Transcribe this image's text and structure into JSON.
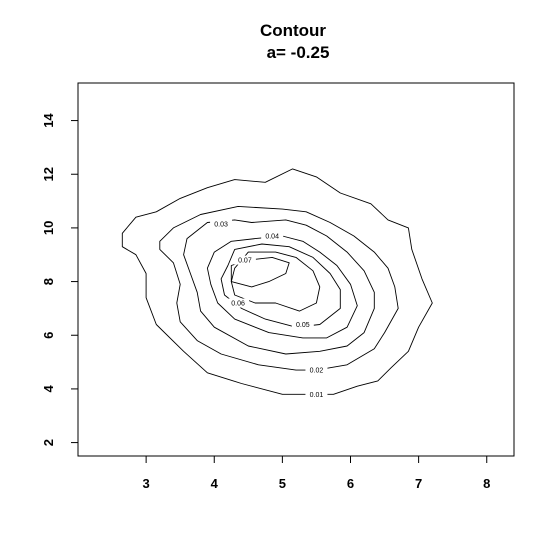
{
  "chart_data": {
    "type": "contour",
    "title": "Contour",
    "subtitle": "a= -0.25",
    "xlabel": "",
    "ylabel": "",
    "xlim": [
      2,
      8.4
    ],
    "ylim": [
      1.5,
      15.4
    ],
    "x_ticks": [
      3,
      4,
      5,
      6,
      7,
      8
    ],
    "y_ticks": [
      2,
      4,
      6,
      8,
      10,
      12,
      14
    ],
    "grid": false,
    "levels": [
      {
        "label": "0.01",
        "label_at": [
          5.5,
          3.8
        ],
        "points": [
          [
            2.65,
            9.8
          ],
          [
            2.85,
            10.4
          ],
          [
            3.15,
            10.6
          ],
          [
            3.5,
            11.1
          ],
          [
            3.9,
            11.5
          ],
          [
            4.3,
            11.8
          ],
          [
            4.75,
            11.7
          ],
          [
            5.15,
            12.2
          ],
          [
            5.5,
            11.9
          ],
          [
            5.85,
            11.3
          ],
          [
            6.3,
            10.9
          ],
          [
            6.55,
            10.3
          ],
          [
            6.85,
            10.0
          ],
          [
            6.9,
            9.2
          ],
          [
            7.05,
            8.1
          ],
          [
            7.2,
            7.2
          ],
          [
            7.0,
            6.3
          ],
          [
            6.85,
            5.4
          ],
          [
            6.6,
            4.8
          ],
          [
            6.4,
            4.3
          ],
          [
            6.1,
            4.1
          ],
          [
            5.75,
            3.8
          ],
          [
            5.5,
            3.8
          ],
          [
            5.0,
            3.8
          ],
          [
            4.4,
            4.2
          ],
          [
            3.9,
            4.6
          ],
          [
            3.55,
            5.4
          ],
          [
            3.15,
            6.4
          ],
          [
            3.0,
            7.4
          ],
          [
            3.0,
            8.3
          ],
          [
            2.85,
            9.0
          ],
          [
            2.65,
            9.3
          ]
        ]
      },
      {
        "label": "0.02",
        "label_at": [
          5.5,
          4.7
        ],
        "points": [
          [
            3.2,
            9.5
          ],
          [
            3.4,
            10.0
          ],
          [
            3.8,
            10.5
          ],
          [
            4.35,
            10.8
          ],
          [
            5.0,
            10.7
          ],
          [
            5.35,
            10.6
          ],
          [
            5.7,
            10.2
          ],
          [
            6.05,
            9.7
          ],
          [
            6.35,
            9.1
          ],
          [
            6.55,
            8.5
          ],
          [
            6.65,
            7.8
          ],
          [
            6.7,
            7.0
          ],
          [
            6.5,
            6.1
          ],
          [
            6.35,
            5.5
          ],
          [
            5.95,
            4.9
          ],
          [
            5.5,
            4.7
          ],
          [
            5.2,
            4.7
          ],
          [
            4.65,
            4.9
          ],
          [
            4.1,
            5.3
          ],
          [
            3.75,
            5.8
          ],
          [
            3.5,
            6.5
          ],
          [
            3.45,
            7.2
          ],
          [
            3.5,
            7.9
          ],
          [
            3.4,
            8.7
          ],
          [
            3.2,
            9.2
          ]
        ]
      },
      {
        "label": "0.03",
        "label_at": [
          4.1,
          10.15
        ],
        "points": [
          [
            3.9,
            10.2
          ],
          [
            4.3,
            10.3
          ],
          [
            4.55,
            10.2
          ],
          [
            5.05,
            10.3
          ],
          [
            5.35,
            10.1
          ],
          [
            5.65,
            9.7
          ],
          [
            5.95,
            9.1
          ],
          [
            6.2,
            8.4
          ],
          [
            6.35,
            7.6
          ],
          [
            6.35,
            7.0
          ],
          [
            6.2,
            6.1
          ],
          [
            5.95,
            5.6
          ],
          [
            5.55,
            5.4
          ],
          [
            5.05,
            5.3
          ],
          [
            4.5,
            5.6
          ],
          [
            4.0,
            6.3
          ],
          [
            3.8,
            6.9
          ],
          [
            3.75,
            7.6
          ],
          [
            3.65,
            8.3
          ],
          [
            3.55,
            9.0
          ],
          [
            3.6,
            9.6
          ]
        ]
      },
      {
        "label": "0.04",
        "label_at": [
          4.85,
          9.7
        ],
        "points": [
          [
            4.6,
            9.6
          ],
          [
            5.0,
            9.7
          ],
          [
            5.3,
            9.5
          ],
          [
            5.55,
            9.1
          ],
          [
            5.8,
            8.6
          ],
          [
            6.0,
            7.9
          ],
          [
            6.1,
            7.1
          ],
          [
            5.95,
            6.3
          ],
          [
            5.65,
            5.9
          ],
          [
            5.3,
            5.9
          ],
          [
            4.8,
            6.1
          ],
          [
            4.3,
            6.6
          ],
          [
            4.05,
            7.2
          ],
          [
            3.95,
            7.9
          ],
          [
            3.9,
            8.5
          ],
          [
            4.0,
            9.1
          ],
          [
            4.25,
            9.5
          ]
        ]
      },
      {
        "label": "0.05",
        "label_at": [
          5.3,
          6.4
        ],
        "points": [
          [
            4.2,
            8.6
          ],
          [
            4.3,
            9.2
          ],
          [
            4.7,
            9.4
          ],
          [
            5.1,
            9.3
          ],
          [
            5.45,
            8.9
          ],
          [
            5.7,
            8.3
          ],
          [
            5.85,
            7.7
          ],
          [
            5.85,
            7.0
          ],
          [
            5.55,
            6.4
          ],
          [
            5.2,
            6.3
          ],
          [
            4.75,
            6.6
          ],
          [
            4.4,
            7.0
          ],
          [
            4.15,
            7.5
          ],
          [
            4.1,
            8.1
          ]
        ]
      },
      {
        "label": "0.06",
        "label_at": [
          4.35,
          7.2
        ],
        "points": [
          [
            4.3,
            8.5
          ],
          [
            4.5,
            9.1
          ],
          [
            4.9,
            9.1
          ],
          [
            5.2,
            8.9
          ],
          [
            5.45,
            8.4
          ],
          [
            5.55,
            7.8
          ],
          [
            5.5,
            7.2
          ],
          [
            5.25,
            6.9
          ],
          [
            4.9,
            7.2
          ],
          [
            4.6,
            7.2
          ],
          [
            4.3,
            7.5
          ],
          [
            4.25,
            8.0
          ]
        ]
      },
      {
        "label": "0.07",
        "label_at": [
          4.45,
          8.8
        ],
        "points": [
          [
            4.25,
            8.0
          ],
          [
            4.25,
            8.6
          ],
          [
            4.5,
            8.8
          ],
          [
            4.85,
            8.9
          ],
          [
            5.1,
            8.7
          ],
          [
            5.05,
            8.3
          ],
          [
            4.8,
            8.0
          ],
          [
            4.55,
            7.8
          ]
        ]
      }
    ]
  }
}
